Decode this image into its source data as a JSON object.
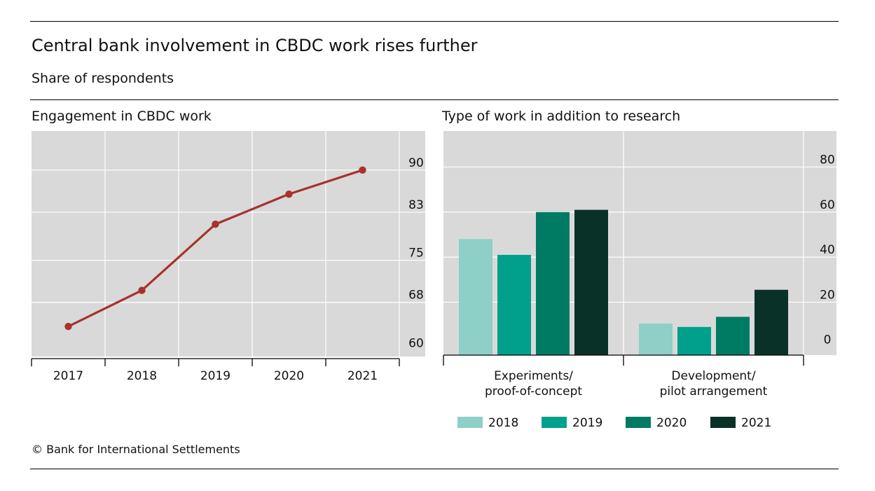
{
  "header": {
    "title": "Central bank involvement in CBDC work rises further",
    "subtitle": "Share of respondents"
  },
  "footer": {
    "source": "© Bank for International Settlements"
  },
  "colors": {
    "panel_bg": "#d9d9d9",
    "grid": "#ffffff",
    "line": "#a8322d",
    "series": [
      "#8ecfc8",
      "#00a08d",
      "#007b63",
      "#0a3128"
    ]
  },
  "chart_data": [
    {
      "type": "line",
      "title": "Engagement in CBDC work",
      "x": [
        "2017",
        "2018",
        "2019",
        "2020",
        "2021"
      ],
      "values": [
        64,
        70,
        81,
        86,
        90
      ],
      "ylim": [
        59,
        96.5
      ],
      "yticks": [
        60,
        68,
        75,
        83,
        90
      ],
      "axis_side": "right",
      "grid": true
    },
    {
      "type": "bar",
      "title": "Type of work in addition to research",
      "categories": [
        "Experiments/\nproof-of-concept",
        "Development/\npilot arrangement"
      ],
      "series": [
        {
          "name": "2018",
          "values": [
            48,
            10.5
          ]
        },
        {
          "name": "2019",
          "values": [
            41,
            9
          ]
        },
        {
          "name": "2020",
          "values": [
            60,
            13.5
          ]
        },
        {
          "name": "2021",
          "values": [
            61,
            25.5
          ]
        }
      ],
      "ylim": [
        -3.5,
        96
      ],
      "yticks": [
        0,
        20,
        40,
        60,
        80
      ],
      "axis_side": "right",
      "legend": "bottom",
      "grid": true
    }
  ]
}
